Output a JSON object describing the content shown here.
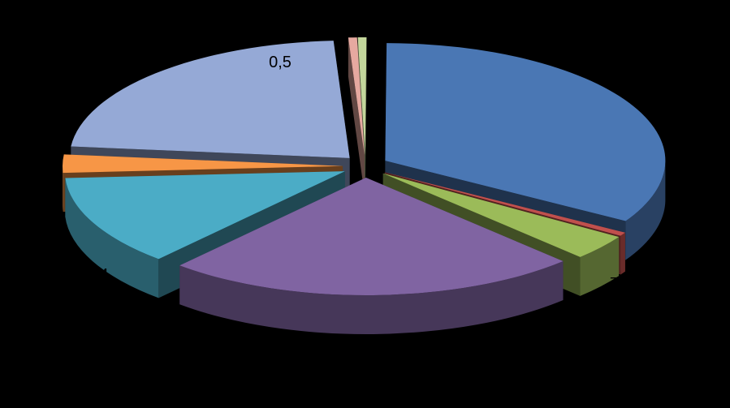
{
  "chart_data": {
    "type": "pie",
    "title": "",
    "slices": [
      {
        "label": "0,5",
        "value": 33.5,
        "color": "#4a77b4"
      },
      {
        "label": "",
        "value": 0.5,
        "color": "#c0504d"
      },
      {
        "label": "zi",
        "value": 3.5,
        "color": "#9bbb59"
      },
      {
        "label": "",
        "value": 24,
        "color": "#8064a2"
      },
      {
        "label": "",
        "value": 12.5,
        "color": "#4bacc6"
      },
      {
        "label": "4",
        "value": 2.5,
        "color": "#f79646"
      },
      {
        "label": "",
        "value": 22.5,
        "color": "#95a9d6"
      },
      {
        "label": "",
        "value": 0.5,
        "color": "#e6a9a0"
      },
      {
        "label": "",
        "value": 0.5,
        "color": "#c3d69b"
      }
    ],
    "data_labels": [
      {
        "text": "0,5",
        "slice_index": 6
      },
      {
        "text": "zi",
        "slice_index": 2
      },
      {
        "text": "4",
        "slice_index": 5
      }
    ]
  }
}
